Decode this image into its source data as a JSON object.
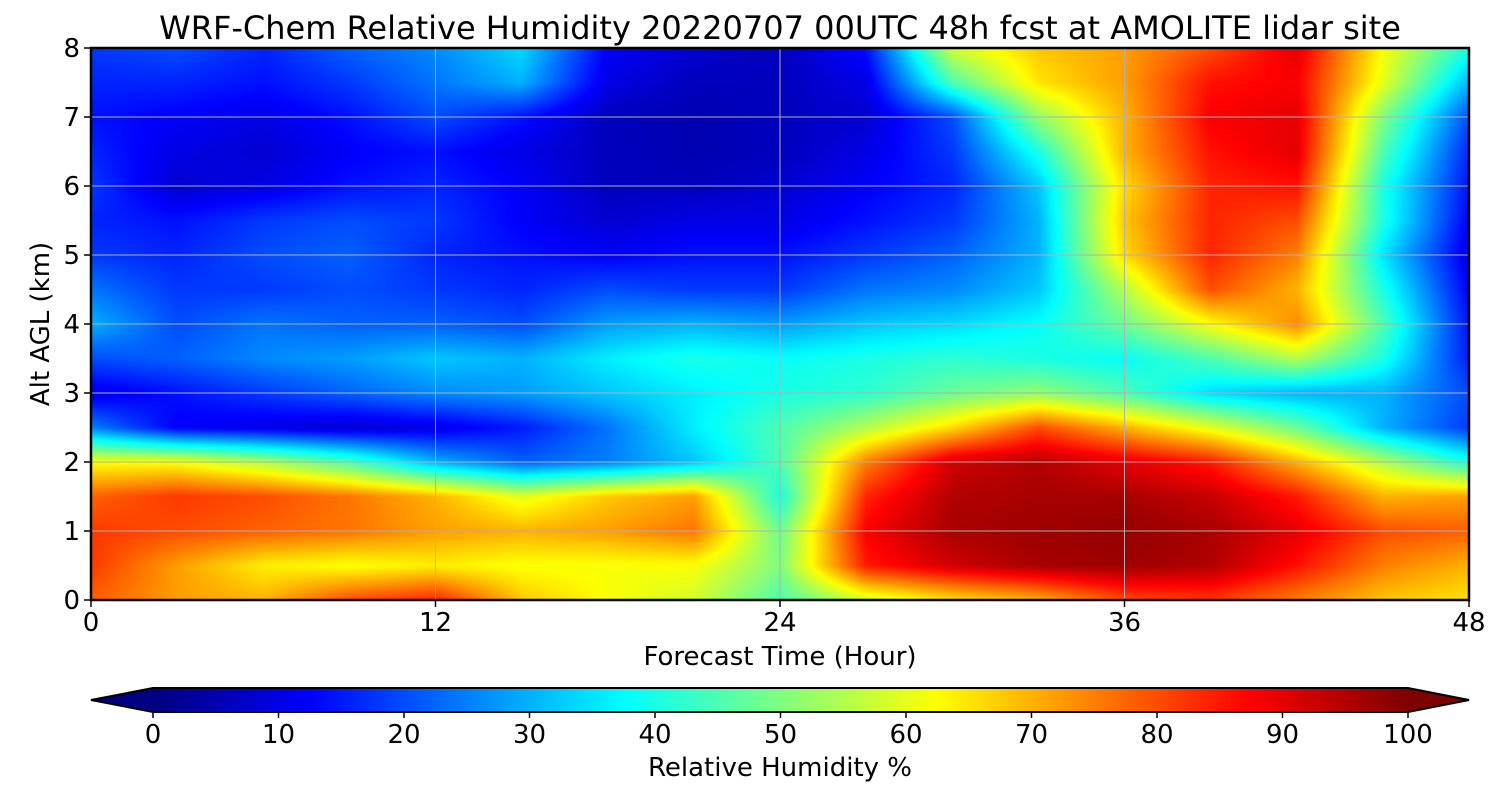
{
  "chart_data": {
    "type": "heatmap",
    "title": "WRF-Chem Relative Humidity 20220707 00UTC 48h fcst at AMOLITE lidar site",
    "xlabel": "Forecast Time (Hour)",
    "ylabel": "Alt AGL (km)",
    "xlim": [
      0,
      48
    ],
    "ylim": [
      0,
      8
    ],
    "x_ticks": [
      0,
      12,
      24,
      36,
      48
    ],
    "y_ticks": [
      0,
      1,
      2,
      3,
      4,
      5,
      6,
      7,
      8
    ],
    "grid": true,
    "colormap": "jet",
    "colorbar": {
      "label": "Relative Humidity %",
      "min": 0,
      "max": 100,
      "ticks": [
        0,
        10,
        20,
        30,
        40,
        50,
        60,
        70,
        80,
        90,
        100
      ],
      "extend": "both",
      "orientation": "horizontal"
    },
    "x": [
      0,
      3,
      6,
      9,
      12,
      15,
      18,
      21,
      24,
      27,
      30,
      33,
      36,
      39,
      42,
      45,
      48
    ],
    "y": [
      0,
      0.5,
      1,
      1.5,
      2,
      2.5,
      3,
      3.5,
      4,
      4.5,
      5,
      5.5,
      6,
      6.5,
      7,
      7.5,
      8
    ],
    "z": [
      [
        78,
        72,
        70,
        80,
        84,
        68,
        62,
        58,
        45,
        58,
        65,
        70,
        80,
        82,
        75,
        68,
        65
      ],
      [
        82,
        72,
        64,
        62,
        64,
        62,
        62,
        62,
        50,
        85,
        92,
        96,
        97,
        95,
        86,
        75,
        70
      ],
      [
        82,
        80,
        78,
        76,
        72,
        70,
        72,
        76,
        48,
        88,
        96,
        97,
        98,
        96,
        90,
        80,
        78
      ],
      [
        78,
        82,
        80,
        76,
        70,
        60,
        68,
        72,
        40,
        84,
        95,
        96,
        96,
        93,
        85,
        70,
        72
      ],
      [
        62,
        62,
        55,
        45,
        30,
        22,
        25,
        32,
        45,
        75,
        92,
        95,
        90,
        85,
        70,
        55,
        40
      ],
      [
        25,
        12,
        10,
        8,
        10,
        15,
        24,
        36,
        45,
        55,
        66,
        80,
        70,
        60,
        48,
        30,
        18
      ],
      [
        10,
        14,
        18,
        22,
        26,
        28,
        32,
        36,
        40,
        42,
        48,
        52,
        45,
        34,
        30,
        30,
        20
      ],
      [
        20,
        22,
        26,
        28,
        32,
        30,
        36,
        40,
        38,
        40,
        42,
        40,
        38,
        45,
        55,
        40,
        15
      ],
      [
        30,
        20,
        24,
        22,
        22,
        20,
        28,
        30,
        28,
        32,
        34,
        38,
        48,
        62,
        74,
        45,
        14
      ],
      [
        24,
        18,
        18,
        20,
        18,
        16,
        20,
        18,
        18,
        24,
        26,
        32,
        55,
        80,
        70,
        40,
        12
      ],
      [
        18,
        16,
        20,
        22,
        16,
        14,
        12,
        14,
        14,
        18,
        22,
        30,
        66,
        84,
        75,
        35,
        10
      ],
      [
        16,
        14,
        18,
        20,
        18,
        12,
        8,
        10,
        10,
        14,
        18,
        30,
        68,
        84,
        80,
        40,
        12
      ],
      [
        18,
        8,
        10,
        14,
        16,
        12,
        6,
        6,
        8,
        12,
        16,
        32,
        66,
        84,
        86,
        40,
        14
      ],
      [
        16,
        10,
        8,
        12,
        14,
        10,
        6,
        5,
        6,
        10,
        18,
        40,
        70,
        86,
        90,
        45,
        16
      ],
      [
        14,
        12,
        10,
        14,
        20,
        14,
        6,
        5,
        6,
        8,
        20,
        52,
        70,
        88,
        90,
        50,
        20
      ],
      [
        16,
        16,
        14,
        18,
        24,
        30,
        10,
        6,
        6,
        10,
        45,
        65,
        72,
        86,
        88,
        60,
        30
      ],
      [
        18,
        20,
        16,
        22,
        26,
        34,
        12,
        8,
        6,
        14,
        58,
        68,
        72,
        80,
        90,
        62,
        40
      ]
    ]
  }
}
